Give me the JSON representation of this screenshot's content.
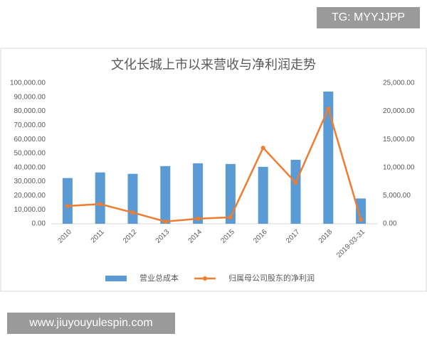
{
  "chart_data": {
    "type": "bar-line",
    "title": "文化长城上市以来营收与净利润走势",
    "categories": [
      "2010",
      "2011",
      "2012",
      "2013",
      "2014",
      "2015",
      "2016",
      "2017",
      "2018",
      "2019-03-31"
    ],
    "series": [
      {
        "name": "营业总成本",
        "color": "#5b9bd5",
        "type": "bar",
        "values": [
          32500,
          36500,
          35500,
          41000,
          43000,
          42500,
          40500,
          45500,
          94000,
          18000
        ]
      },
      {
        "name": "归属母公司股东的净利润",
        "color": "#ed7d31",
        "type": "line",
        "axis": "y2",
        "values": [
          3150,
          3500,
          2000,
          400,
          900,
          1150,
          13500,
          7300,
          20450,
          750
        ]
      }
    ],
    "ylim": [
      0,
      100000
    ],
    "yticks": [
      {
        "value": 0,
        "label": "0.00"
      },
      {
        "value": 10000,
        "label": "10,000.00"
      },
      {
        "value": 20000,
        "label": "20,000.00"
      },
      {
        "value": 30000,
        "label": "30,000.00"
      },
      {
        "value": 40000,
        "label": "40,000.00"
      },
      {
        "value": 50000,
        "label": "50,000.00"
      },
      {
        "value": 60000,
        "label": "60,000.00"
      },
      {
        "value": 70000,
        "label": "70,000.00"
      },
      {
        "value": 80000,
        "label": "80,000.00"
      },
      {
        "value": 90000,
        "label": "90,000.00"
      },
      {
        "value": 100000,
        "label": "100,000.00"
      }
    ],
    "y2lim": [
      0,
      25000
    ],
    "y2ticks": [
      {
        "value": 0,
        "label": "0.00"
      },
      {
        "value": 5000,
        "label": "5,000.00"
      },
      {
        "value": 10000,
        "label": "10,000.00"
      },
      {
        "value": 15000,
        "label": "15,000.00"
      },
      {
        "value": 20000,
        "label": "20,000.00"
      },
      {
        "value": 25000,
        "label": "25,000.00"
      }
    ],
    "grid": false,
    "legend": "bottom"
  },
  "overlay": {
    "tag": "TG: MYYJJPP",
    "url": "www.jiuyouyulespin.com"
  }
}
